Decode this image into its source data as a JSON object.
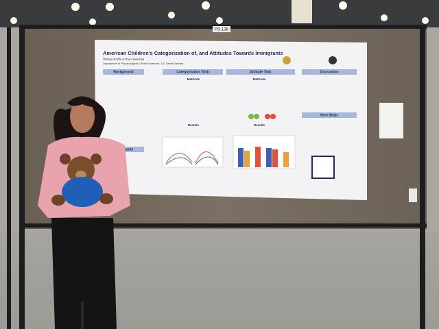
{
  "booth_sign": "PS-138",
  "poster": {
    "title": "American Children's Categorization of, and Attitudes Towards Immigrants",
    "authors": "Shreya Sodhi & Zoe Liberman",
    "affiliation": "Department of Psychological & Brain Sciences, UC Santa Barbara",
    "sections": [
      "Background",
      "Categorization Task",
      "Attitude Task",
      "Discussion",
      "Methods",
      "Methods",
      "Results",
      "Results",
      "Participants",
      "Next Steps"
    ]
  }
}
